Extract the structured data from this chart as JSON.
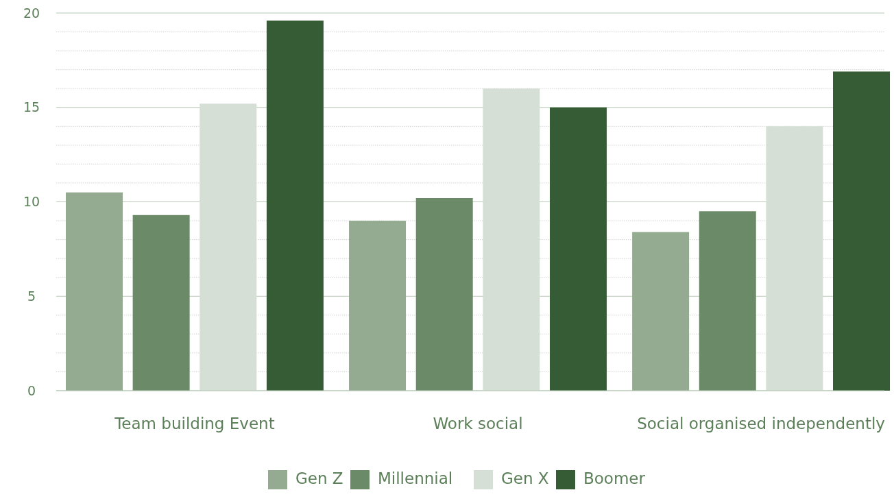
{
  "chart_data": {
    "type": "bar",
    "categories": [
      "Team building Event",
      "Work social",
      "Social organised independently"
    ],
    "series": [
      {
        "name": "Gen Z",
        "color": "#94aa91",
        "values": [
          10.5,
          9.0,
          8.4
        ]
      },
      {
        "name": "Millennial",
        "color": "#6a8a68",
        "values": [
          9.3,
          10.2,
          9.5
        ]
      },
      {
        "name": "Gen X",
        "color": "#d5dfd5",
        "values": [
          15.2,
          16.0,
          14.0
        ]
      },
      {
        "name": "Boomer",
        "color": "#365c35",
        "values": [
          19.6,
          15.0,
          16.9
        ]
      }
    ],
    "ylim": [
      0,
      20
    ],
    "yticks": [
      0,
      {
        "value": 1,
        "label": null
      },
      {
        "value": 2,
        "label": null
      },
      {
        "value": 3,
        "label": null
      },
      {
        "value": 4,
        "label": null
      },
      5,
      {
        "value": 6,
        "label": null
      },
      {
        "value": 7,
        "label": null
      },
      {
        "value": 8,
        "label": null
      },
      {
        "value": 9,
        "label": null
      },
      10,
      {
        "value": 11,
        "label": null
      },
      {
        "value": 12,
        "label": null
      },
      {
        "value": 13,
        "label": null
      },
      {
        "value": 14,
        "label": null
      },
      15,
      {
        "value": 16,
        "label": null
      },
      {
        "value": 17,
        "label": null
      },
      {
        "value": 18,
        "label": null
      },
      {
        "value": 19,
        "label": null
      },
      20
    ],
    "grid": "y",
    "legend": "bottom"
  }
}
